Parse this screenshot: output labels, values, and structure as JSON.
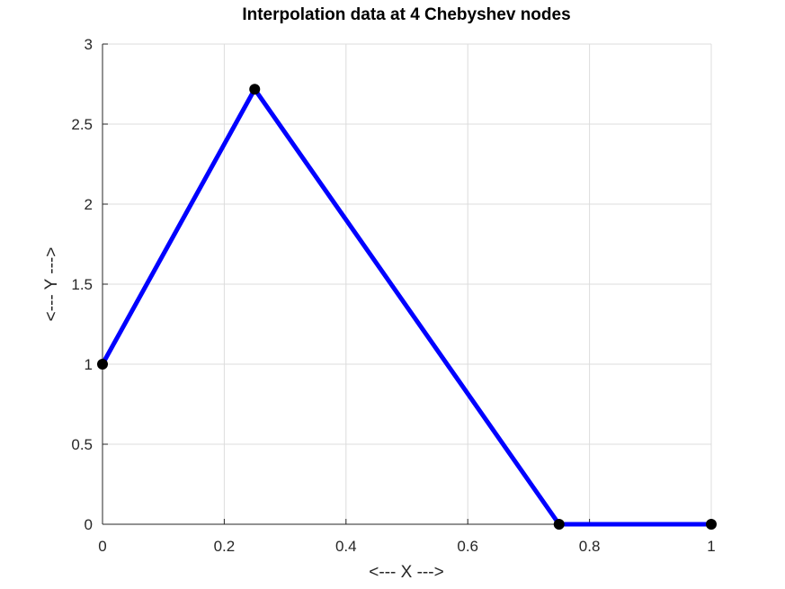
{
  "chart_data": {
    "type": "line",
    "title": "Interpolation data at 4 Chebyshev nodes",
    "xlabel": "<--- X --->",
    "ylabel": "<--- Y --->",
    "xlim": [
      0,
      1
    ],
    "ylim": [
      0,
      3
    ],
    "xticks": [
      0,
      0.2,
      0.4,
      0.6,
      0.8,
      1
    ],
    "xtick_labels": [
      "0",
      "0.2",
      "0.4",
      "0.6",
      "0.8",
      "1"
    ],
    "yticks": [
      0,
      0.5,
      1,
      1.5,
      2,
      2.5,
      3
    ],
    "ytick_labels": [
      "0",
      "0.5",
      "1",
      "1.5",
      "2",
      "2.5",
      "3"
    ],
    "grid": true,
    "series": [
      {
        "x": [
          0,
          0.25,
          0.75,
          1
        ],
        "y": [
          1,
          2.718,
          0,
          0
        ],
        "line_color": "#0000ff",
        "marker_color": "#000000"
      }
    ]
  }
}
